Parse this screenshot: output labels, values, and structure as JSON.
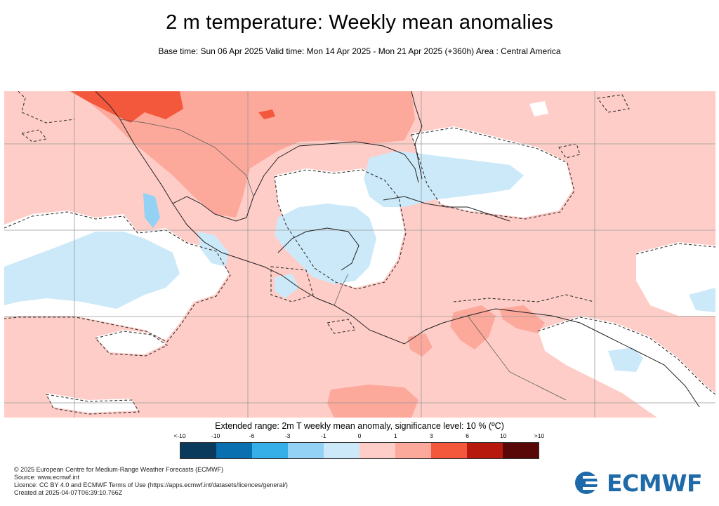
{
  "title": "2 m temperature: Weekly mean anomalies",
  "subtitle": "Base time: Sun 06 Apr 2025 Valid time: Mon 14 Apr 2025 - Mon 21 Apr 2025 (+360h) Area : Central America",
  "legend": {
    "title": "Extended range: 2m T weekly mean anomaly, significance level: 10 % (ºC)",
    "ticks": [
      "<-10",
      "-10",
      "-6",
      "-3",
      "-1",
      "0",
      "1",
      "3",
      "6",
      "10",
      ">10"
    ],
    "colors": [
      "#0a3a5c",
      "#0a70b0",
      "#36aee8",
      "#93d1f5",
      "#cce9f9",
      "#ffcdc8",
      "#fca89b",
      "#f4583c",
      "#b8190d",
      "#5a0707"
    ]
  },
  "footer": {
    "line1": "© 2025 European Centre for Medium-Range Weather Forecasts (ECMWF)",
    "line2": "Source: www.ecmwf.int",
    "line3": "Licence: CC BY 4.0 and ECMWF Terms of Use (https://apps.ecmwf.int/datasets/licences/general/)",
    "line4": "Created at 2025-04-07T06:39:10.766Z"
  },
  "logo": {
    "text": "ECMWF",
    "icon": "ecmwf-logo-icon"
  }
}
